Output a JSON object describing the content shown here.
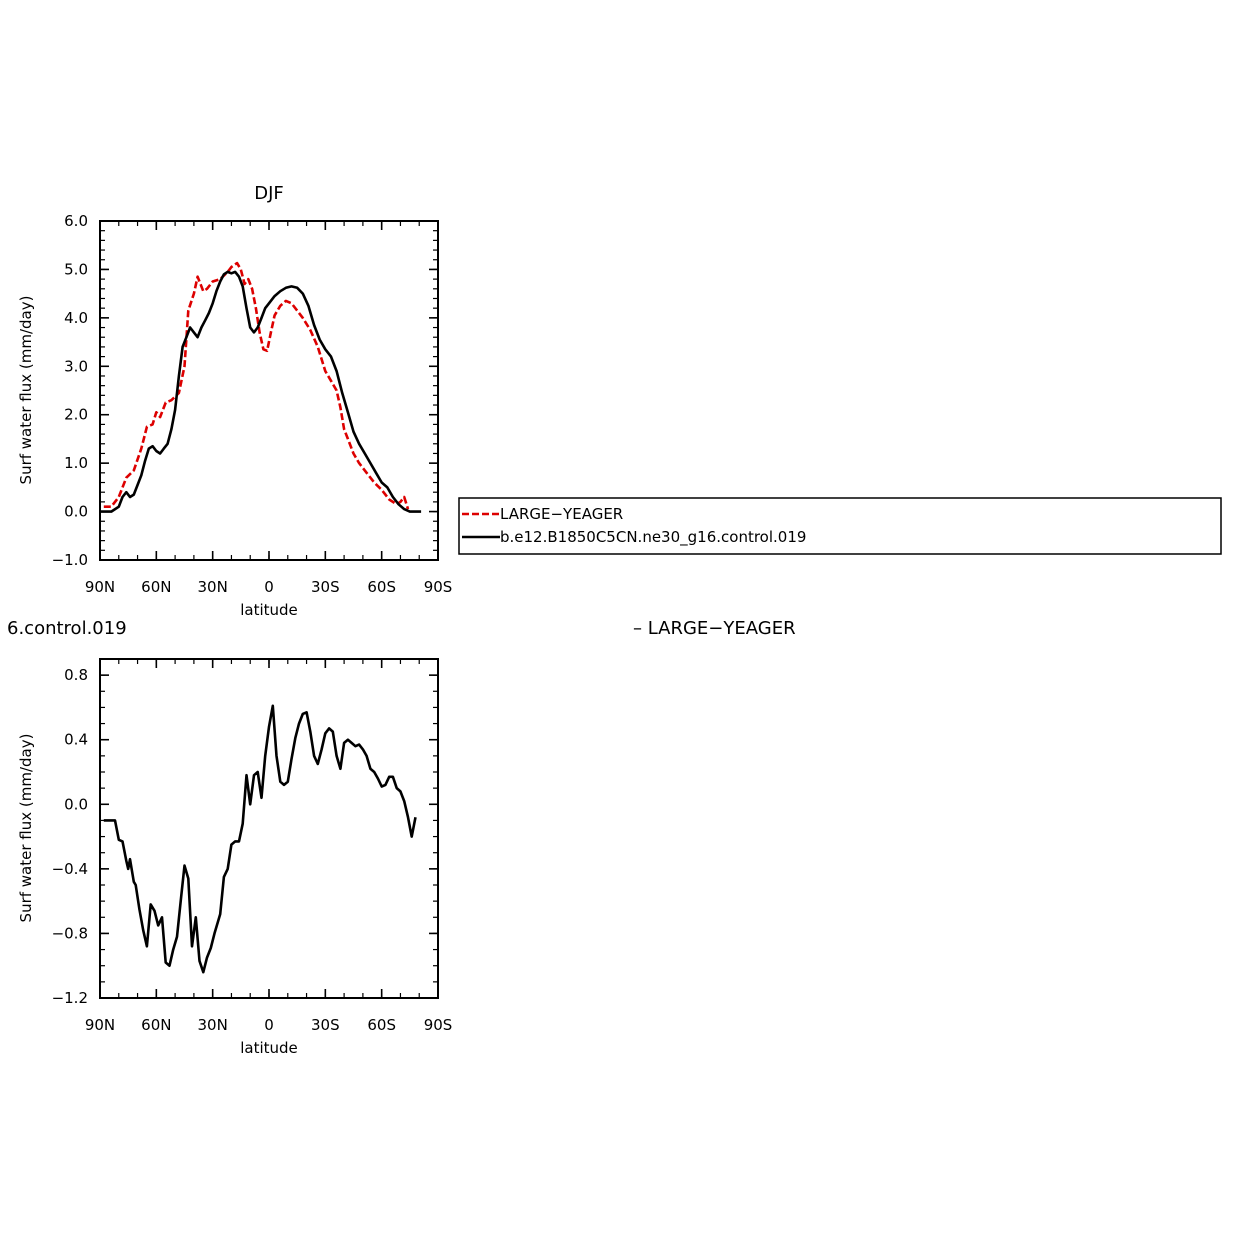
{
  "page": {
    "background": "#ffffff"
  },
  "figure_text": {
    "cropped_title": "6.control.019",
    "difference_title": "– LARGE−YEAGER"
  },
  "legend": {
    "entries": [
      {
        "label": "LARGE−YEAGER",
        "color": "#dd0000",
        "style": "dashed"
      },
      {
        "label": "b.e12.B1850C5CN.ne30_g16.control.019",
        "color": "#000000",
        "style": "solid"
      }
    ]
  },
  "chart_data": [
    {
      "type": "line",
      "title": "DJF",
      "xlabel": "latitude",
      "ylabel": "Surf water flux (mm/day)",
      "xlim": [
        -90,
        90
      ],
      "ylim": [
        -1.0,
        6.0
      ],
      "xticks": [
        -90,
        -60,
        -30,
        0,
        30,
        60,
        90
      ],
      "xtick_labels": [
        "90N",
        "60N",
        "30N",
        "0",
        "30S",
        "60S",
        "90S"
      ],
      "yticks": [
        -1.0,
        0.0,
        1.0,
        2.0,
        3.0,
        4.0,
        5.0,
        6.0
      ],
      "ytick_labels": [
        "−1.0",
        "0.0",
        "1.0",
        "2.0",
        "3.0",
        "4.0",
        "5.0",
        "6.0"
      ],
      "series": [
        {
          "name": "LARGE−YEAGER",
          "color": "#dd0000",
          "style": "dashed",
          "points": [
            [
              -88,
              0.1
            ],
            [
              -84,
              0.1
            ],
            [
              -80,
              0.3
            ],
            [
              -76,
              0.7
            ],
            [
              -72,
              0.85
            ],
            [
              -68,
              1.3
            ],
            [
              -65,
              1.75
            ],
            [
              -62,
              1.8
            ],
            [
              -60,
              2.05
            ],
            [
              -58,
              1.95
            ],
            [
              -55,
              2.25
            ],
            [
              -52,
              2.3
            ],
            [
              -48,
              2.45
            ],
            [
              -45,
              3.0
            ],
            [
              -43,
              4.15
            ],
            [
              -40,
              4.5
            ],
            [
              -38,
              4.85
            ],
            [
              -35,
              4.55
            ],
            [
              -33,
              4.6
            ],
            [
              -30,
              4.75
            ],
            [
              -26,
              4.8
            ],
            [
              -22,
              4.95
            ],
            [
              -20,
              5.05
            ],
            [
              -17,
              5.13
            ],
            [
              -15,
              5.0
            ],
            [
              -13,
              4.7
            ],
            [
              -11,
              4.8
            ],
            [
              -9,
              4.6
            ],
            [
              -7,
              4.2
            ],
            [
              -5,
              3.7
            ],
            [
              -3,
              3.35
            ],
            [
              -1,
              3.32
            ],
            [
              1,
              3.7
            ],
            [
              3,
              4.05
            ],
            [
              6,
              4.25
            ],
            [
              9,
              4.35
            ],
            [
              12,
              4.3
            ],
            [
              15,
              4.15
            ],
            [
              18,
              4.0
            ],
            [
              22,
              3.75
            ],
            [
              26,
              3.4
            ],
            [
              30,
              2.9
            ],
            [
              33,
              2.7
            ],
            [
              36,
              2.5
            ],
            [
              38,
              2.15
            ],
            [
              40,
              1.7
            ],
            [
              42,
              1.5
            ],
            [
              45,
              1.2
            ],
            [
              48,
              1.0
            ],
            [
              52,
              0.8
            ],
            [
              56,
              0.6
            ],
            [
              60,
              0.45
            ],
            [
              64,
              0.25
            ],
            [
              68,
              0.15
            ],
            [
              70,
              0.2
            ],
            [
              72,
              0.3
            ],
            [
              74,
              0.05
            ]
          ]
        },
        {
          "name": "b.e12.B1850C5CN.ne30_g16.control.019",
          "color": "#000000",
          "style": "solid",
          "points": [
            [
              -90,
              0.0
            ],
            [
              -84,
              0.0
            ],
            [
              -80,
              0.1
            ],
            [
              -78,
              0.3
            ],
            [
              -76,
              0.4
            ],
            [
              -74,
              0.3
            ],
            [
              -72,
              0.35
            ],
            [
              -70,
              0.55
            ],
            [
              -68,
              0.75
            ],
            [
              -66,
              1.05
            ],
            [
              -64,
              1.3
            ],
            [
              -62,
              1.35
            ],
            [
              -60,
              1.25
            ],
            [
              -58,
              1.2
            ],
            [
              -56,
              1.3
            ],
            [
              -54,
              1.4
            ],
            [
              -52,
              1.7
            ],
            [
              -50,
              2.1
            ],
            [
              -48,
              2.8
            ],
            [
              -46,
              3.4
            ],
            [
              -44,
              3.6
            ],
            [
              -42,
              3.8
            ],
            [
              -40,
              3.7
            ],
            [
              -38,
              3.6
            ],
            [
              -36,
              3.8
            ],
            [
              -34,
              3.95
            ],
            [
              -32,
              4.1
            ],
            [
              -30,
              4.3
            ],
            [
              -28,
              4.55
            ],
            [
              -26,
              4.75
            ],
            [
              -24,
              4.9
            ],
            [
              -22,
              4.95
            ],
            [
              -20,
              4.92
            ],
            [
              -18,
              4.95
            ],
            [
              -16,
              4.85
            ],
            [
              -14,
              4.65
            ],
            [
              -12,
              4.2
            ],
            [
              -10,
              3.8
            ],
            [
              -8,
              3.7
            ],
            [
              -6,
              3.8
            ],
            [
              -4,
              4.0
            ],
            [
              -2,
              4.2
            ],
            [
              0,
              4.3
            ],
            [
              3,
              4.45
            ],
            [
              6,
              4.55
            ],
            [
              9,
              4.62
            ],
            [
              12,
              4.65
            ],
            [
              15,
              4.62
            ],
            [
              18,
              4.5
            ],
            [
              21,
              4.25
            ],
            [
              24,
              3.85
            ],
            [
              27,
              3.55
            ],
            [
              30,
              3.35
            ],
            [
              33,
              3.2
            ],
            [
              36,
              2.9
            ],
            [
              39,
              2.45
            ],
            [
              42,
              2.05
            ],
            [
              45,
              1.65
            ],
            [
              48,
              1.4
            ],
            [
              51,
              1.2
            ],
            [
              54,
              1.0
            ],
            [
              57,
              0.8
            ],
            [
              60,
              0.6
            ],
            [
              63,
              0.5
            ],
            [
              66,
              0.3
            ],
            [
              69,
              0.15
            ],
            [
              72,
              0.05
            ],
            [
              75,
              0.0
            ],
            [
              78,
              0.0
            ],
            [
              81,
              0.0
            ]
          ]
        }
      ]
    },
    {
      "type": "line",
      "title": "6.control.019 – LARGE−YEAGER",
      "xlabel": "latitude",
      "ylabel": "Surf water flux (mm/day)",
      "xlim": [
        -90,
        90
      ],
      "ylim": [
        -1.2,
        0.9
      ],
      "xticks": [
        -90,
        -60,
        -30,
        0,
        30,
        60,
        90
      ],
      "xtick_labels": [
        "90N",
        "60N",
        "30N",
        "0",
        "30S",
        "60S",
        "90S"
      ],
      "yticks": [
        -1.2,
        -0.8,
        -0.4,
        0.0,
        0.4,
        0.8
      ],
      "ytick_labels": [
        "−1.2",
        "−0.8",
        "−0.4",
        "0.0",
        "0.4",
        "0.8"
      ],
      "series": [
        {
          "name": "",
          "color": "#000000",
          "style": "solid",
          "points": [
            [
              -88,
              -0.1
            ],
            [
              -82,
              -0.1
            ],
            [
              -80,
              -0.22
            ],
            [
              -78,
              -0.23
            ],
            [
              -76,
              -0.35
            ],
            [
              -75,
              -0.4
            ],
            [
              -74,
              -0.34
            ],
            [
              -72,
              -0.48
            ],
            [
              -71,
              -0.5
            ],
            [
              -69,
              -0.65
            ],
            [
              -67,
              -0.78
            ],
            [
              -65,
              -0.88
            ],
            [
              -63,
              -0.62
            ],
            [
              -61,
              -0.66
            ],
            [
              -59,
              -0.75
            ],
            [
              -57,
              -0.7
            ],
            [
              -55,
              -0.98
            ],
            [
              -53,
              -1.0
            ],
            [
              -51,
              -0.9
            ],
            [
              -49,
              -0.82
            ],
            [
              -47,
              -0.6
            ],
            [
              -45,
              -0.38
            ],
            [
              -43,
              -0.46
            ],
            [
              -41,
              -0.88
            ],
            [
              -39,
              -0.7
            ],
            [
              -37,
              -0.97
            ],
            [
              -35,
              -1.04
            ],
            [
              -33,
              -0.95
            ],
            [
              -31,
              -0.89
            ],
            [
              -29,
              -0.8
            ],
            [
              -26,
              -0.68
            ],
            [
              -24,
              -0.45
            ],
            [
              -22,
              -0.4
            ],
            [
              -20,
              -0.25
            ],
            [
              -18,
              -0.23
            ],
            [
              -16,
              -0.23
            ],
            [
              -14,
              -0.12
            ],
            [
              -12,
              0.18
            ],
            [
              -10,
              0.0
            ],
            [
              -8,
              0.18
            ],
            [
              -6,
              0.2
            ],
            [
              -4,
              0.04
            ],
            [
              -2,
              0.3
            ],
            [
              0,
              0.48
            ],
            [
              2,
              0.61
            ],
            [
              4,
              0.3
            ],
            [
              6,
              0.14
            ],
            [
              8,
              0.12
            ],
            [
              10,
              0.14
            ],
            [
              12,
              0.28
            ],
            [
              14,
              0.41
            ],
            [
              16,
              0.5
            ],
            [
              18,
              0.56
            ],
            [
              20,
              0.57
            ],
            [
              22,
              0.45
            ],
            [
              24,
              0.3
            ],
            [
              26,
              0.25
            ],
            [
              28,
              0.34
            ],
            [
              30,
              0.44
            ],
            [
              32,
              0.47
            ],
            [
              34,
              0.45
            ],
            [
              36,
              0.3
            ],
            [
              38,
              0.22
            ],
            [
              40,
              0.38
            ],
            [
              42,
              0.4
            ],
            [
              44,
              0.38
            ],
            [
              46,
              0.36
            ],
            [
              48,
              0.37
            ],
            [
              50,
              0.34
            ],
            [
              52,
              0.3
            ],
            [
              54,
              0.22
            ],
            [
              56,
              0.2
            ],
            [
              58,
              0.16
            ],
            [
              60,
              0.11
            ],
            [
              62,
              0.12
            ],
            [
              64,
              0.17
            ],
            [
              66,
              0.17
            ],
            [
              68,
              0.1
            ],
            [
              70,
              0.08
            ],
            [
              72,
              0.02
            ],
            [
              74,
              -0.08
            ],
            [
              76,
              -0.2
            ],
            [
              78,
              -0.08
            ]
          ]
        }
      ]
    }
  ]
}
